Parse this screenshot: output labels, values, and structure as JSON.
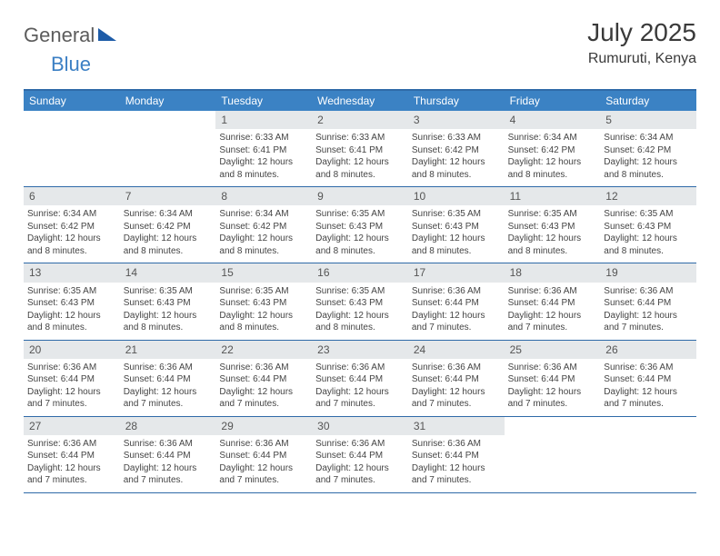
{
  "colors": {
    "header_bg": "#3b82c4",
    "border": "#2f6aa8",
    "daynum_bg": "#e5e8ea",
    "text": "#444444",
    "logo_gray": "#5c5c5c",
    "logo_blue": "#3b7fc4",
    "logo_tri": "#1e5ca8"
  },
  "logo": {
    "part1": "General",
    "part2": "Blue"
  },
  "title": "July 2025",
  "location": "Rumuruti, Kenya",
  "weekdays": [
    "Sunday",
    "Monday",
    "Tuesday",
    "Wednesday",
    "Thursday",
    "Friday",
    "Saturday"
  ],
  "weeks": [
    [
      {
        "blank": true
      },
      {
        "blank": true
      },
      {
        "n": "1",
        "sunrise": "Sunrise: 6:33 AM",
        "sunset": "Sunset: 6:41 PM",
        "day1": "Daylight: 12 hours",
        "day2": "and 8 minutes."
      },
      {
        "n": "2",
        "sunrise": "Sunrise: 6:33 AM",
        "sunset": "Sunset: 6:41 PM",
        "day1": "Daylight: 12 hours",
        "day2": "and 8 minutes."
      },
      {
        "n": "3",
        "sunrise": "Sunrise: 6:33 AM",
        "sunset": "Sunset: 6:42 PM",
        "day1": "Daylight: 12 hours",
        "day2": "and 8 minutes."
      },
      {
        "n": "4",
        "sunrise": "Sunrise: 6:34 AM",
        "sunset": "Sunset: 6:42 PM",
        "day1": "Daylight: 12 hours",
        "day2": "and 8 minutes."
      },
      {
        "n": "5",
        "sunrise": "Sunrise: 6:34 AM",
        "sunset": "Sunset: 6:42 PM",
        "day1": "Daylight: 12 hours",
        "day2": "and 8 minutes."
      }
    ],
    [
      {
        "n": "6",
        "sunrise": "Sunrise: 6:34 AM",
        "sunset": "Sunset: 6:42 PM",
        "day1": "Daylight: 12 hours",
        "day2": "and 8 minutes."
      },
      {
        "n": "7",
        "sunrise": "Sunrise: 6:34 AM",
        "sunset": "Sunset: 6:42 PM",
        "day1": "Daylight: 12 hours",
        "day2": "and 8 minutes."
      },
      {
        "n": "8",
        "sunrise": "Sunrise: 6:34 AM",
        "sunset": "Sunset: 6:42 PM",
        "day1": "Daylight: 12 hours",
        "day2": "and 8 minutes."
      },
      {
        "n": "9",
        "sunrise": "Sunrise: 6:35 AM",
        "sunset": "Sunset: 6:43 PM",
        "day1": "Daylight: 12 hours",
        "day2": "and 8 minutes."
      },
      {
        "n": "10",
        "sunrise": "Sunrise: 6:35 AM",
        "sunset": "Sunset: 6:43 PM",
        "day1": "Daylight: 12 hours",
        "day2": "and 8 minutes."
      },
      {
        "n": "11",
        "sunrise": "Sunrise: 6:35 AM",
        "sunset": "Sunset: 6:43 PM",
        "day1": "Daylight: 12 hours",
        "day2": "and 8 minutes."
      },
      {
        "n": "12",
        "sunrise": "Sunrise: 6:35 AM",
        "sunset": "Sunset: 6:43 PM",
        "day1": "Daylight: 12 hours",
        "day2": "and 8 minutes."
      }
    ],
    [
      {
        "n": "13",
        "sunrise": "Sunrise: 6:35 AM",
        "sunset": "Sunset: 6:43 PM",
        "day1": "Daylight: 12 hours",
        "day2": "and 8 minutes."
      },
      {
        "n": "14",
        "sunrise": "Sunrise: 6:35 AM",
        "sunset": "Sunset: 6:43 PM",
        "day1": "Daylight: 12 hours",
        "day2": "and 8 minutes."
      },
      {
        "n": "15",
        "sunrise": "Sunrise: 6:35 AM",
        "sunset": "Sunset: 6:43 PM",
        "day1": "Daylight: 12 hours",
        "day2": "and 8 minutes."
      },
      {
        "n": "16",
        "sunrise": "Sunrise: 6:35 AM",
        "sunset": "Sunset: 6:43 PM",
        "day1": "Daylight: 12 hours",
        "day2": "and 8 minutes."
      },
      {
        "n": "17",
        "sunrise": "Sunrise: 6:36 AM",
        "sunset": "Sunset: 6:44 PM",
        "day1": "Daylight: 12 hours",
        "day2": "and 7 minutes."
      },
      {
        "n": "18",
        "sunrise": "Sunrise: 6:36 AM",
        "sunset": "Sunset: 6:44 PM",
        "day1": "Daylight: 12 hours",
        "day2": "and 7 minutes."
      },
      {
        "n": "19",
        "sunrise": "Sunrise: 6:36 AM",
        "sunset": "Sunset: 6:44 PM",
        "day1": "Daylight: 12 hours",
        "day2": "and 7 minutes."
      }
    ],
    [
      {
        "n": "20",
        "sunrise": "Sunrise: 6:36 AM",
        "sunset": "Sunset: 6:44 PM",
        "day1": "Daylight: 12 hours",
        "day2": "and 7 minutes."
      },
      {
        "n": "21",
        "sunrise": "Sunrise: 6:36 AM",
        "sunset": "Sunset: 6:44 PM",
        "day1": "Daylight: 12 hours",
        "day2": "and 7 minutes."
      },
      {
        "n": "22",
        "sunrise": "Sunrise: 6:36 AM",
        "sunset": "Sunset: 6:44 PM",
        "day1": "Daylight: 12 hours",
        "day2": "and 7 minutes."
      },
      {
        "n": "23",
        "sunrise": "Sunrise: 6:36 AM",
        "sunset": "Sunset: 6:44 PM",
        "day1": "Daylight: 12 hours",
        "day2": "and 7 minutes."
      },
      {
        "n": "24",
        "sunrise": "Sunrise: 6:36 AM",
        "sunset": "Sunset: 6:44 PM",
        "day1": "Daylight: 12 hours",
        "day2": "and 7 minutes."
      },
      {
        "n": "25",
        "sunrise": "Sunrise: 6:36 AM",
        "sunset": "Sunset: 6:44 PM",
        "day1": "Daylight: 12 hours",
        "day2": "and 7 minutes."
      },
      {
        "n": "26",
        "sunrise": "Sunrise: 6:36 AM",
        "sunset": "Sunset: 6:44 PM",
        "day1": "Daylight: 12 hours",
        "day2": "and 7 minutes."
      }
    ],
    [
      {
        "n": "27",
        "sunrise": "Sunrise: 6:36 AM",
        "sunset": "Sunset: 6:44 PM",
        "day1": "Daylight: 12 hours",
        "day2": "and 7 minutes."
      },
      {
        "n": "28",
        "sunrise": "Sunrise: 6:36 AM",
        "sunset": "Sunset: 6:44 PM",
        "day1": "Daylight: 12 hours",
        "day2": "and 7 minutes."
      },
      {
        "n": "29",
        "sunrise": "Sunrise: 6:36 AM",
        "sunset": "Sunset: 6:44 PM",
        "day1": "Daylight: 12 hours",
        "day2": "and 7 minutes."
      },
      {
        "n": "30",
        "sunrise": "Sunrise: 6:36 AM",
        "sunset": "Sunset: 6:44 PM",
        "day1": "Daylight: 12 hours",
        "day2": "and 7 minutes."
      },
      {
        "n": "31",
        "sunrise": "Sunrise: 6:36 AM",
        "sunset": "Sunset: 6:44 PM",
        "day1": "Daylight: 12 hours",
        "day2": "and 7 minutes."
      },
      {
        "blank": true
      },
      {
        "blank": true
      }
    ]
  ]
}
